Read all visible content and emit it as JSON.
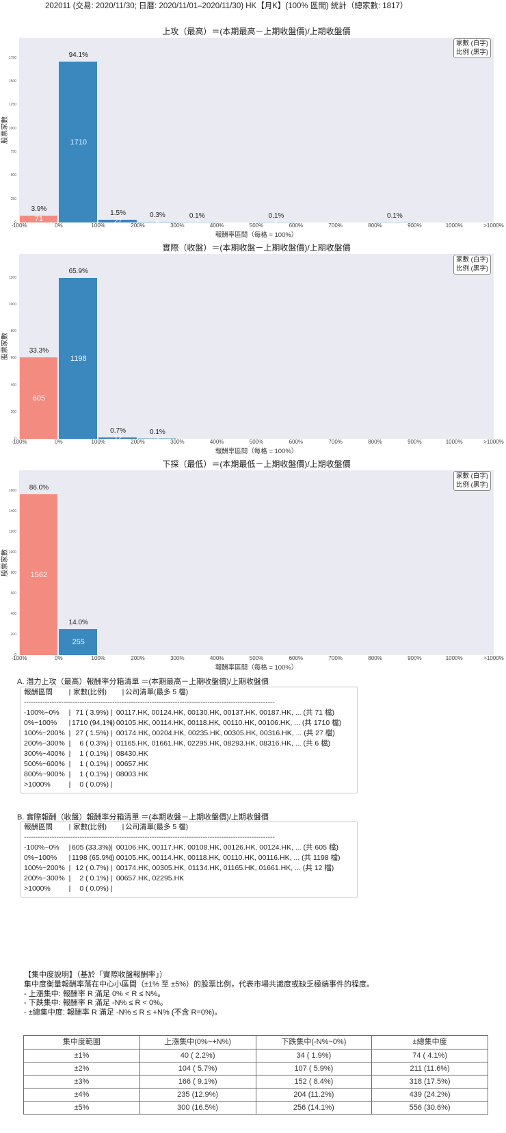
{
  "page": {
    "title": "202011 (交易: 2020/11/30; 日曆: 2020/11/01–2020/11/30) HK【月K】(100% 區間) 統計（總家數: 1817）"
  },
  "chart_data": [
    {
      "id": "upside-high",
      "type": "bar",
      "title": "上攻（最高）＝(本期最高－上期收盤價)/上期收盤價",
      "xlabel": "報酬率區間（每格 = 100%）",
      "ylabel": "股票家數",
      "categories": [
        "-100%~0%",
        "0%~100%",
        "100%~200%",
        "200%~300%",
        "300%~400%",
        "400%~500%",
        "500%~600%",
        "600%~700%",
        "700%~800%",
        "800%~900%",
        "900%~1000%",
        ">1000%"
      ],
      "values": [
        71,
        1710,
        27,
        6,
        1,
        0,
        1,
        0,
        0,
        1,
        0,
        0
      ],
      "percent_labels": [
        "3.9%",
        "94.1%",
        "1.5%",
        "0.3%",
        "0.1%",
        "",
        "0.1%",
        "",
        "",
        "0.1%",
        "",
        ""
      ],
      "xticks": [
        "-100%",
        "0%",
        "100%",
        "200%",
        "300%",
        "400%",
        "500%",
        "600%",
        "700%",
        "800%",
        "900%",
        "1000%",
        ">1000%"
      ],
      "yticks": [
        0,
        250,
        500,
        750,
        1000,
        1250,
        1500,
        1750
      ],
      "ylim": [
        0,
        1966.5
      ],
      "legend": [
        "家數 (白字)",
        "比例 (黑字)"
      ],
      "legend_position": "upper right",
      "grid": false,
      "colors": [
        "#f48b80",
        "#3a88be",
        "#3b80c0",
        "#8cb5da",
        "#b8d1e8",
        "#b8d1e8",
        "#b8d1e8",
        "#b8d1e8",
        "#b8d1e8",
        "#b8d1e8",
        "#b8d1e8",
        "#b8d1e8"
      ]
    },
    {
      "id": "actual-close",
      "type": "bar",
      "title": "實際（收盤）＝(本期收盤－上期收盤價)/上期收盤價",
      "xlabel": "報酬率區間（每格 = 100%）",
      "ylabel": "股票家數",
      "categories": [
        "-100%~0%",
        "0%~100%",
        "100%~200%",
        "200%~300%",
        "300%~400%",
        "400%~500%",
        "500%~600%",
        "600%~700%",
        "700%~800%",
        "800%~900%",
        "900%~1000%",
        ">1000%"
      ],
      "values": [
        605,
        1198,
        12,
        2,
        0,
        0,
        0,
        0,
        0,
        0,
        0,
        0
      ],
      "percent_labels": [
        "33.3%",
        "65.9%",
        "0.7%",
        "0.1%",
        "",
        "",
        "",
        "",
        "",
        "",
        "",
        ""
      ],
      "xticks": [
        "-100%",
        "0%",
        "100%",
        "200%",
        "300%",
        "400%",
        "500%",
        "600%",
        "700%",
        "800%",
        "900%",
        "1000%",
        ">1000%"
      ],
      "yticks": [
        0,
        200,
        400,
        600,
        800,
        1000,
        1200
      ],
      "ylim": [
        0,
        1377.7
      ],
      "legend": [
        "家數 (白字)",
        "比例 (黑字)"
      ],
      "legend_position": "upper right",
      "grid": false,
      "colors": [
        "#f48b80",
        "#3a88be",
        "#3d7fbd",
        "#9fc1e1",
        "#b8d1e8",
        "#b8d1e8",
        "#b8d1e8",
        "#b8d1e8",
        "#b8d1e8",
        "#b8d1e8",
        "#b8d1e8",
        "#b8d1e8"
      ]
    },
    {
      "id": "downside-low",
      "type": "bar",
      "title": "下探（最低）＝(本期最低－上期收盤價)/上期收盤價",
      "xlabel": "報酬率區間（每格 = 100%）",
      "ylabel": "股票家數",
      "categories": [
        "-100%~0%",
        "0%~100%",
        "100%~200%",
        "200%~300%",
        "300%~400%",
        "400%~500%",
        "500%~600%",
        "600%~700%",
        "700%~800%",
        "800%~900%",
        "900%~1000%",
        ">1000%"
      ],
      "values": [
        1562,
        255,
        0,
        0,
        0,
        0,
        0,
        0,
        0,
        0,
        0,
        0
      ],
      "percent_labels": [
        "86.0%",
        "14.0%",
        "",
        "",
        "",
        "",
        "",
        "",
        "",
        "",
        "",
        ""
      ],
      "xticks": [
        "-100%",
        "0%",
        "100%",
        "200%",
        "300%",
        "400%",
        "500%",
        "600%",
        "700%",
        "800%",
        "900%",
        "1000%",
        ">1000%"
      ],
      "yticks": [
        0,
        200,
        400,
        600,
        800,
        1000,
        1200,
        1400,
        1600
      ],
      "ylim": [
        0,
        1796.3
      ],
      "legend": [
        "家數 (白字)",
        "比例 (黑字)"
      ],
      "legend_position": "upper right",
      "grid": false,
      "colors": [
        "#f48b80",
        "#3a88be",
        "#3b80c0",
        "#8cb5da",
        "#b8d1e8",
        "#b8d1e8",
        "#b8d1e8",
        "#b8d1e8",
        "#b8d1e8",
        "#b8d1e8",
        "#b8d1e8",
        "#b8d1e8"
      ]
    }
  ],
  "list_a": {
    "heading": "A. 潛力上攻（最高）報酬率分箱清單 ＝(本期最高－上期收盤價)/上期收盤價",
    "header": {
      "range": "報酬區間",
      "count": "家數(比例)",
      "companies": "公司清單(最多 5 檔)"
    },
    "separator": "|",
    "divider": "------------------------------------------------------------------------------------------------------------",
    "rows": [
      {
        "range": "-100%~0%",
        "count": "71 ( 3.9%)",
        "companies": " 00117.HK, 00124.HK, 00130.HK, 00137.HK, 00187.HK, ... (共 71 檔)"
      },
      {
        "range": "0%~100%",
        "count": "1710 (94.1%)",
        "companies": " 00105.HK, 00114.HK, 00118.HK, 00110.HK, 00106.HK, ... (共 1710 檔)"
      },
      {
        "range": "100%~200%",
        "count": "27 ( 1.5%)",
        "companies": " 00174.HK, 00204.HK, 00235.HK, 00305.HK, 00316.HK, ... (共 27 檔)"
      },
      {
        "range": "200%~300%",
        "count": "6 ( 0.3%)",
        "companies": " 01165.HK, 01661.HK, 02295.HK, 08293.HK, 08316.HK, ... (共 6 檔)"
      },
      {
        "range": "300%~400%",
        "count": "1 ( 0.1%)",
        "companies": " 08430.HK"
      },
      {
        "range": "500%~600%",
        "count": "1 ( 0.1%)",
        "companies": " 00657.HK"
      },
      {
        "range": "800%~900%",
        "count": "1 ( 0.1%)",
        "companies": " 08003.HK"
      },
      {
        "range": ">1000%",
        "count": "0 ( 0.0%)",
        "companies": ""
      }
    ]
  },
  "list_b": {
    "heading": "B. 實際報酬（收盤）報酬率分箱清單 ＝(本期收盤－上期收盤價)/上期收盤價",
    "header": {
      "range": "報酬區間",
      "count": "家數(比例)",
      "companies": "公司清單(最多 5 檔)"
    },
    "separator": "|",
    "divider": "------------------------------------------------------------------------------------------------------------",
    "rows": [
      {
        "range": "-100%~0%",
        "count": "605 (33.3%)",
        "companies": " 00106.HK, 00117.HK, 00108.HK, 00126.HK, 00124.HK, ... (共 605 檔)"
      },
      {
        "range": "0%~100%",
        "count": "1198 (65.9%)",
        "companies": " 00105.HK, 00114.HK, 00118.HK, 00110.HK, 00116.HK, ... (共 1198 檔)"
      },
      {
        "range": "100%~200%",
        "count": "12 ( 0.7%)",
        "companies": " 00174.HK, 00305.HK, 01134.HK, 01165.HK, 01661.HK, ... (共 12 檔)"
      },
      {
        "range": "200%~300%",
        "count": "2 ( 0.1%)",
        "companies": " 00657.HK, 02295.HK"
      },
      {
        "range": ">1000%",
        "count": "0 ( 0.0%)",
        "companies": ""
      }
    ]
  },
  "concentration_notes": {
    "title": "【集中度說明】（基於「實際收盤報酬率」）",
    "description": "集中度衡量報酬率落在中心小區間（±1% 至 ±5%）的股票比例，代表市場共識度或缺乏極端事件的程度。",
    "items": [
      " - 上漲集中: 報酬率 R 滿足 0% < R ≤ N%。",
      " - 下跌集中: 報酬率 R 滿足 -N% ≤ R < 0%。",
      " - ±總集中度: 報酬率 R 滿足 -N% ≤ R ≤ +N% (不含 R=0%)。"
    ]
  },
  "concentration_table": {
    "headers": [
      "集中度範圍",
      "上漲集中(0%~+N%)",
      "下跌集中(-N%~0%)",
      "±總集中度"
    ],
    "rows": [
      [
        "±1%",
        "40 ( 2.2%)",
        "34 ( 1.9%)",
        "74 ( 4.1%)"
      ],
      [
        "±2%",
        "104 ( 5.7%)",
        "107 ( 5.9%)",
        "211 (11.6%)"
      ],
      [
        "±3%",
        "166 ( 9.1%)",
        "152 ( 8.4%)",
        "318 (17.5%)"
      ],
      [
        "±4%",
        "235 (12.9%)",
        "204 (11.2%)",
        "439 (24.2%)"
      ],
      [
        "±5%",
        "300 (16.5%)",
        "256 (14.1%)",
        "556 (30.6%)"
      ]
    ]
  }
}
